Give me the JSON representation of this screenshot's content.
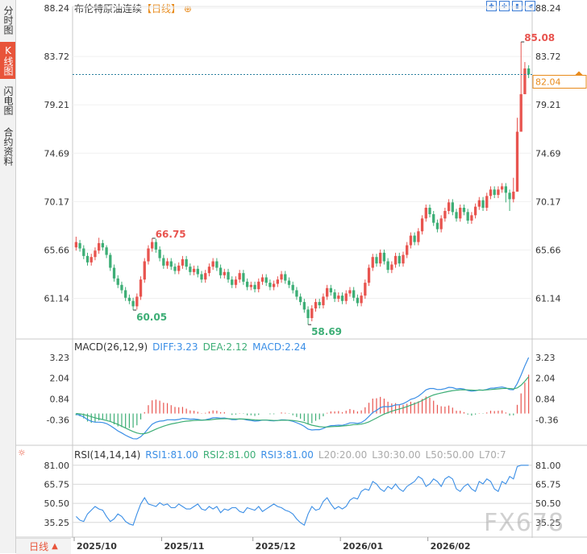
{
  "sidebar": {
    "tabs": [
      {
        "label": "分时图",
        "active": false
      },
      {
        "label": "K线图",
        "active": true
      },
      {
        "label": "闪电图",
        "active": false
      },
      {
        "label": "合约资料",
        "active": false
      }
    ]
  },
  "header": {
    "title": "布伦特原油连续",
    "timeframe": "【日线】",
    "add_icon": "plus-circle-icon",
    "tools": [
      "zoom-in-icon",
      "zoom-out-icon",
      "scroll-end-icon",
      "scroll-left-icon"
    ]
  },
  "timeframe_selector": {
    "label": "日线",
    "arrow": "▲"
  },
  "watermark": "FX678",
  "colors": {
    "up": "#e8544f",
    "down": "#3dae76",
    "diff": "#3a8ee6",
    "dea": "#3dae76",
    "rsi": "#3a8ee6",
    "price_tag": "#e88a1a"
  },
  "chart_data": [
    {
      "type": "candlestick",
      "title": "布伦特原油连续",
      "timeframe": "日线",
      "yticks": [
        "88.24",
        "83.72",
        "79.21",
        "74.69",
        "70.17",
        "65.66",
        "61.14"
      ],
      "ylim": [
        57.8,
        88.24
      ],
      "x_labels": [
        "2025/10",
        "2025/11",
        "2025/12",
        "2026/01",
        "2026/02"
      ],
      "current_price": "82.04",
      "annotations": [
        {
          "text": "66.75",
          "value": 66.75,
          "type": "high"
        },
        {
          "text": "60.05",
          "value": 60.05,
          "type": "low"
        },
        {
          "text": "58.69",
          "value": 58.69,
          "type": "low"
        },
        {
          "text": "85.08",
          "value": 85.08,
          "type": "high"
        }
      ],
      "closes": [
        66.4,
        65.8,
        65.1,
        64.5,
        65.0,
        65.6,
        66.3,
        65.9,
        65.2,
        64.0,
        63.0,
        62.4,
        61.9,
        61.2,
        60.9,
        60.4,
        61.3,
        62.9,
        64.6,
        65.8,
        66.4,
        65.7,
        64.9,
        64.2,
        64.6,
        64.1,
        63.7,
        64.2,
        64.8,
        64.1,
        63.6,
        63.9,
        63.4,
        62.9,
        63.5,
        64.1,
        64.6,
        64.0,
        63.3,
        63.6,
        62.9,
        62.4,
        62.9,
        63.5,
        62.7,
        62.2,
        62.4,
        62.0,
        62.7,
        63.1,
        62.6,
        62.2,
        62.5,
        62.9,
        63.4,
        62.8,
        62.4,
        61.9,
        61.3,
        60.8,
        60.1,
        59.3,
        60.2,
        60.8,
        60.5,
        61.3,
        62.1,
        61.7,
        61.1,
        61.4,
        60.9,
        61.6,
        61.9,
        61.2,
        60.7,
        61.4,
        62.6,
        64.0,
        65.0,
        64.4,
        65.4,
        64.6,
        63.8,
        64.3,
        65.1,
        64.4,
        65.2,
        66.1,
        67.0,
        66.4,
        67.4,
        68.6,
        69.6,
        69.0,
        68.2,
        67.6,
        68.6,
        69.3,
        70.1,
        69.2,
        68.6,
        69.6,
        69.2,
        68.4,
        68.9,
        69.7,
        70.3,
        69.6,
        70.7,
        71.3,
        70.8,
        71.3,
        71.6,
        71.0,
        70.4,
        71.1,
        76.7,
        80.2,
        82.6,
        82.04
      ],
      "opens": [
        65.9,
        66.3,
        65.8,
        65.1,
        64.5,
        65.0,
        65.6,
        66.3,
        65.9,
        65.2,
        64.0,
        63.0,
        62.4,
        61.9,
        61.2,
        60.9,
        60.4,
        61.3,
        62.9,
        64.6,
        65.8,
        66.4,
        65.7,
        64.9,
        64.2,
        64.6,
        64.1,
        63.7,
        64.2,
        64.8,
        64.1,
        63.6,
        63.9,
        63.4,
        62.9,
        63.5,
        64.1,
        64.6,
        64.0,
        63.3,
        63.6,
        62.9,
        62.4,
        62.9,
        63.5,
        62.7,
        62.2,
        62.4,
        62.0,
        62.7,
        63.1,
        62.6,
        62.2,
        62.5,
        62.9,
        63.4,
        62.8,
        62.4,
        61.9,
        61.3,
        60.8,
        60.1,
        59.3,
        60.2,
        60.8,
        60.5,
        61.3,
        62.1,
        61.7,
        61.1,
        61.4,
        60.9,
        61.6,
        61.9,
        61.2,
        60.7,
        61.4,
        62.6,
        64.0,
        65.0,
        64.4,
        65.4,
        64.6,
        63.8,
        64.3,
        65.1,
        64.4,
        65.2,
        66.1,
        67.0,
        66.4,
        67.4,
        68.6,
        69.6,
        69.0,
        68.2,
        67.6,
        68.6,
        69.3,
        70.1,
        69.2,
        68.6,
        69.6,
        69.2,
        68.4,
        68.9,
        69.7,
        70.3,
        69.6,
        70.7,
        71.3,
        70.8,
        71.3,
        71.6,
        71.0,
        70.4,
        71.1,
        76.7,
        80.2,
        82.6
      ],
      "highs": [
        66.9,
        66.6,
        66.1,
        65.4,
        65.3,
        65.9,
        66.8,
        66.6,
        66.1,
        65.4,
        64.3,
        63.3,
        62.7,
        62.2,
        61.5,
        61.2,
        61.6,
        63.2,
        64.9,
        66.1,
        66.75,
        66.7,
        66.0,
        65.2,
        64.9,
        64.9,
        64.4,
        64.5,
        65.1,
        65.1,
        64.4,
        64.2,
        64.2,
        63.7,
        63.8,
        64.4,
        64.9,
        64.9,
        64.3,
        63.9,
        63.9,
        63.2,
        63.2,
        63.8,
        63.8,
        63.0,
        62.7,
        62.7,
        63.0,
        63.4,
        63.4,
        62.9,
        62.8,
        63.2,
        63.7,
        63.7,
        63.1,
        62.7,
        62.2,
        61.6,
        61.1,
        60.4,
        60.5,
        61.1,
        61.1,
        61.6,
        62.4,
        62.4,
        62.0,
        61.7,
        61.7,
        61.9,
        62.2,
        62.2,
        61.5,
        61.7,
        62.9,
        64.3,
        65.3,
        65.3,
        65.7,
        65.7,
        64.9,
        64.6,
        65.4,
        65.4,
        65.5,
        66.4,
        67.3,
        67.3,
        67.7,
        68.9,
        69.9,
        69.9,
        69.3,
        68.5,
        68.9,
        69.6,
        70.4,
        70.4,
        69.5,
        69.9,
        69.9,
        69.5,
        69.2,
        70.0,
        70.6,
        70.6,
        71.0,
        71.6,
        71.6,
        71.6,
        71.9,
        71.9,
        71.3,
        72.4,
        78.0,
        85.08,
        83.2,
        82.9
      ],
      "lows": [
        65.6,
        65.5,
        64.8,
        64.2,
        64.2,
        64.7,
        65.3,
        65.6,
        64.9,
        63.7,
        62.7,
        62.1,
        61.6,
        60.9,
        60.6,
        60.05,
        60.1,
        61.0,
        62.6,
        64.3,
        65.5,
        65.4,
        64.6,
        63.9,
        63.9,
        63.8,
        63.4,
        63.4,
        63.9,
        63.8,
        63.3,
        63.3,
        63.1,
        62.6,
        62.6,
        63.2,
        63.8,
        63.7,
        63.0,
        63.0,
        62.6,
        62.1,
        62.1,
        62.6,
        62.4,
        61.9,
        61.9,
        61.7,
        61.7,
        62.4,
        62.3,
        61.9,
        61.9,
        62.2,
        62.6,
        62.5,
        62.1,
        61.6,
        61.0,
        60.5,
        59.8,
        58.69,
        59.0,
        59.9,
        60.2,
        60.2,
        61.0,
        61.4,
        60.8,
        60.8,
        60.6,
        60.6,
        61.3,
        60.9,
        60.4,
        60.4,
        61.1,
        62.3,
        63.7,
        64.1,
        64.1,
        64.3,
        63.5,
        63.5,
        64.0,
        64.1,
        64.1,
        64.9,
        65.8,
        66.1,
        66.1,
        67.1,
        68.3,
        68.7,
        67.9,
        67.3,
        67.3,
        68.3,
        69.0,
        68.9,
        68.3,
        68.3,
        68.9,
        68.1,
        68.1,
        68.6,
        69.4,
        69.3,
        69.3,
        70.4,
        70.5,
        70.5,
        71.0,
        70.1,
        69.3,
        70.1,
        75.6,
        79.5,
        81.6,
        81.7
      ]
    },
    {
      "type": "line",
      "title": "MACD(26,12,9)",
      "legend": [
        {
          "label": "DIFF:3.23",
          "color": "#3a8ee6"
        },
        {
          "label": "DEA:2.12",
          "color": "#3dae76"
        },
        {
          "label": "MACD:2.24",
          "color": "#3a8ee6"
        }
      ],
      "yticks": [
        "3.23",
        "2.04",
        "0.84",
        "-0.36"
      ],
      "ylim": [
        -1.6,
        3.6
      ],
      "series": [
        {
          "name": "DIFF",
          "values": [
            -0.05,
            -0.1,
            -0.2,
            -0.35,
            -0.45,
            -0.5,
            -0.5,
            -0.52,
            -0.58,
            -0.7,
            -0.85,
            -1.0,
            -1.12,
            -1.25,
            -1.36,
            -1.45,
            -1.46,
            -1.34,
            -1.12,
            -0.86,
            -0.62,
            -0.5,
            -0.44,
            -0.42,
            -0.36,
            -0.36,
            -0.37,
            -0.34,
            -0.28,
            -0.3,
            -0.33,
            -0.32,
            -0.34,
            -0.38,
            -0.36,
            -0.31,
            -0.25,
            -0.24,
            -0.27,
            -0.26,
            -0.3,
            -0.35,
            -0.35,
            -0.31,
            -0.33,
            -0.38,
            -0.4,
            -0.44,
            -0.42,
            -0.38,
            -0.38,
            -0.41,
            -0.42,
            -0.4,
            -0.36,
            -0.37,
            -0.4,
            -0.45,
            -0.53,
            -0.62,
            -0.74,
            -0.9,
            -0.95,
            -0.93,
            -0.93,
            -0.86,
            -0.76,
            -0.7,
            -0.69,
            -0.67,
            -0.68,
            -0.62,
            -0.54,
            -0.54,
            -0.57,
            -0.52,
            -0.38,
            -0.17,
            0.06,
            0.18,
            0.34,
            0.4,
            0.39,
            0.42,
            0.5,
            0.51,
            0.57,
            0.68,
            0.82,
            0.88,
            1.0,
            1.17,
            1.36,
            1.44,
            1.44,
            1.38,
            1.39,
            1.43,
            1.51,
            1.49,
            1.42,
            1.44,
            1.41,
            1.33,
            1.29,
            1.31,
            1.36,
            1.34,
            1.39,
            1.46,
            1.47,
            1.5,
            1.53,
            1.48,
            1.38,
            1.37,
            1.73,
            2.21,
            2.75,
            3.23
          ]
        },
        {
          "name": "DEA",
          "values": [
            0.0,
            -0.02,
            -0.06,
            -0.12,
            -0.18,
            -0.25,
            -0.3,
            -0.35,
            -0.4,
            -0.46,
            -0.54,
            -0.63,
            -0.73,
            -0.84,
            -0.94,
            -1.04,
            -1.12,
            -1.17,
            -1.16,
            -1.1,
            -1.0,
            -0.9,
            -0.81,
            -0.73,
            -0.66,
            -0.6,
            -0.56,
            -0.52,
            -0.47,
            -0.44,
            -0.42,
            -0.4,
            -0.39,
            -0.39,
            -0.38,
            -0.37,
            -0.34,
            -0.32,
            -0.31,
            -0.3,
            -0.3,
            -0.31,
            -0.32,
            -0.32,
            -0.32,
            -0.33,
            -0.35,
            -0.37,
            -0.38,
            -0.38,
            -0.38,
            -0.39,
            -0.4,
            -0.4,
            -0.39,
            -0.39,
            -0.39,
            -0.4,
            -0.43,
            -0.47,
            -0.52,
            -0.6,
            -0.67,
            -0.72,
            -0.76,
            -0.78,
            -0.78,
            -0.76,
            -0.75,
            -0.74,
            -0.72,
            -0.7,
            -0.67,
            -0.64,
            -0.63,
            -0.61,
            -0.56,
            -0.48,
            -0.37,
            -0.26,
            -0.14,
            -0.03,
            0.05,
            0.13,
            0.2,
            0.26,
            0.32,
            0.4,
            0.48,
            0.56,
            0.65,
            0.75,
            0.87,
            0.98,
            1.07,
            1.13,
            1.18,
            1.23,
            1.28,
            1.32,
            1.34,
            1.36,
            1.37,
            1.36,
            1.35,
            1.34,
            1.35,
            1.35,
            1.36,
            1.38,
            1.4,
            1.42,
            1.44,
            1.45,
            1.44,
            1.42,
            1.48,
            1.63,
            1.86,
            2.12
          ]
        }
      ],
      "bars": {
        "name": "MACD",
        "values": [
          -0.1,
          -0.16,
          -0.28,
          -0.46,
          -0.54,
          -0.5,
          -0.4,
          -0.34,
          -0.36,
          -0.48,
          -0.62,
          -0.74,
          -0.78,
          -0.82,
          -0.84,
          -0.82,
          -0.68,
          -0.34,
          0.08,
          0.48,
          0.76,
          0.8,
          0.74,
          0.62,
          0.6,
          0.48,
          0.38,
          0.36,
          0.38,
          0.28,
          0.18,
          0.16,
          0.1,
          0.02,
          0.04,
          0.12,
          0.18,
          0.16,
          0.08,
          0.08,
          0.0,
          -0.08,
          -0.06,
          0.02,
          -0.02,
          -0.1,
          -0.1,
          -0.14,
          -0.08,
          0.0,
          0.0,
          -0.04,
          -0.04,
          0.0,
          0.06,
          0.04,
          -0.02,
          -0.1,
          -0.2,
          -0.3,
          -0.44,
          -0.6,
          -0.56,
          -0.42,
          -0.34,
          -0.16,
          0.04,
          0.12,
          0.12,
          0.14,
          0.08,
          0.16,
          0.26,
          0.2,
          0.12,
          0.18,
          0.36,
          0.62,
          0.86,
          0.88,
          0.96,
          0.86,
          0.68,
          0.58,
          0.6,
          0.5,
          0.5,
          0.56,
          0.68,
          0.64,
          0.7,
          0.84,
          0.98,
          0.92,
          0.74,
          0.5,
          0.42,
          0.4,
          0.46,
          0.34,
          0.16,
          0.16,
          0.08,
          -0.06,
          -0.12,
          -0.06,
          0.02,
          -0.02,
          0.06,
          0.16,
          0.14,
          0.16,
          0.18,
          0.06,
          -0.12,
          -0.1,
          0.5,
          1.16,
          1.78,
          2.24
        ]
      }
    },
    {
      "type": "line",
      "title": "RSI(14,14,14)",
      "legend": [
        {
          "label": "RSI1:81.00",
          "color": "#3a8ee6"
        },
        {
          "label": "RSI2:81.00",
          "color": "#3dae76"
        },
        {
          "label": "RSI3:81.00",
          "color": "#3a8ee6"
        },
        {
          "label": "L20:20.00",
          "color": "#aaaaaa"
        },
        {
          "label": "L30:30.00",
          "color": "#aaaaaa"
        },
        {
          "label": "L50:50.00",
          "color": "#aaaaaa"
        },
        {
          "label": "L70:7",
          "color": "#aaaaaa"
        }
      ],
      "yticks": [
        "81.00",
        "65.75",
        "50.50",
        "35.25"
      ],
      "ylim": [
        28,
        86
      ],
      "series": [
        {
          "name": "RSI1",
          "values": [
            40,
            37,
            36,
            42,
            45,
            48,
            46,
            45,
            40,
            36,
            38,
            42,
            40,
            36,
            34,
            33,
            42,
            50,
            55,
            50,
            49,
            48,
            51,
            49,
            50,
            47,
            47,
            50,
            48,
            46,
            46,
            48,
            50,
            46,
            45,
            48,
            46,
            48,
            43,
            46,
            45,
            47,
            47,
            44,
            43,
            47,
            46,
            45,
            48,
            44,
            46,
            48,
            50,
            48,
            47,
            45,
            44,
            42,
            38,
            35,
            33,
            42,
            48,
            45,
            46,
            52,
            55,
            50,
            46,
            48,
            46,
            48,
            53,
            55,
            54,
            60,
            62,
            61,
            68,
            66,
            62,
            60,
            64,
            62,
            66,
            62,
            60,
            64,
            66,
            68,
            72,
            70,
            64,
            66,
            70,
            68,
            64,
            70,
            72,
            70,
            62,
            60,
            64,
            66,
            62,
            60,
            68,
            66,
            70,
            68,
            62,
            60,
            68,
            66,
            72,
            70,
            80,
            81,
            81,
            81
          ]
        }
      ]
    }
  ]
}
